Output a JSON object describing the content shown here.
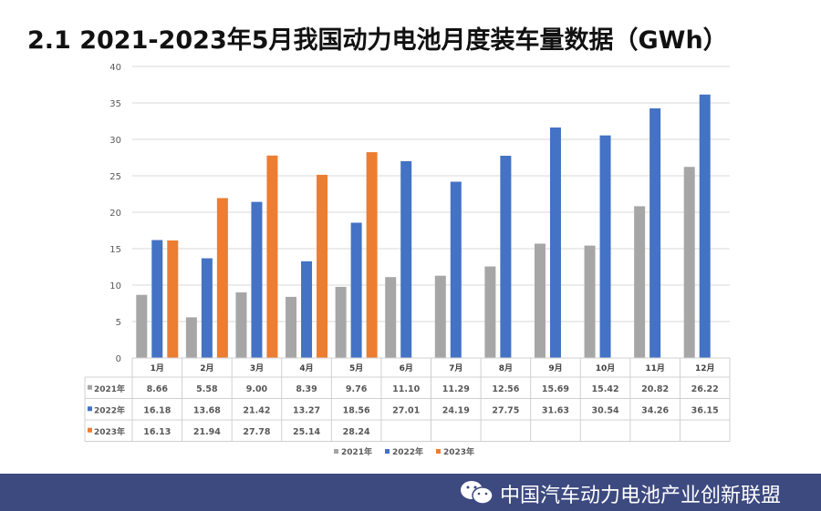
{
  "title": "2.1 2021-2023年5月我国动力电池月度装车量数据（GWh）",
  "footer": {
    "brand": "中国汽车动力电池产业创新联盟",
    "icon": "wechat-icon"
  },
  "chart_data": {
    "type": "bar",
    "categories": [
      "1月",
      "2月",
      "3月",
      "4月",
      "5月",
      "6月",
      "7月",
      "8月",
      "9月",
      "10月",
      "11月",
      "12月"
    ],
    "series": [
      {
        "name": "2021年",
        "color": "#a6a6a6",
        "values": [
          8.66,
          5.58,
          9.0,
          8.39,
          9.76,
          11.1,
          11.29,
          12.56,
          15.69,
          15.42,
          20.82,
          26.22
        ]
      },
      {
        "name": "2022年",
        "color": "#4472c4",
        "values": [
          16.18,
          13.68,
          21.42,
          13.27,
          18.56,
          27.01,
          24.19,
          27.75,
          31.63,
          30.54,
          34.26,
          36.15
        ]
      },
      {
        "name": "2023年",
        "color": "#ed7d31",
        "values": [
          16.13,
          21.94,
          27.78,
          25.14,
          28.24,
          null,
          null,
          null,
          null,
          null,
          null,
          null
        ]
      }
    ],
    "ylim": [
      0,
      40
    ],
    "yticks": [
      0,
      5,
      10,
      15,
      20,
      25,
      30,
      35,
      40
    ],
    "grid": true,
    "data_table": true,
    "legend": "bottom"
  }
}
